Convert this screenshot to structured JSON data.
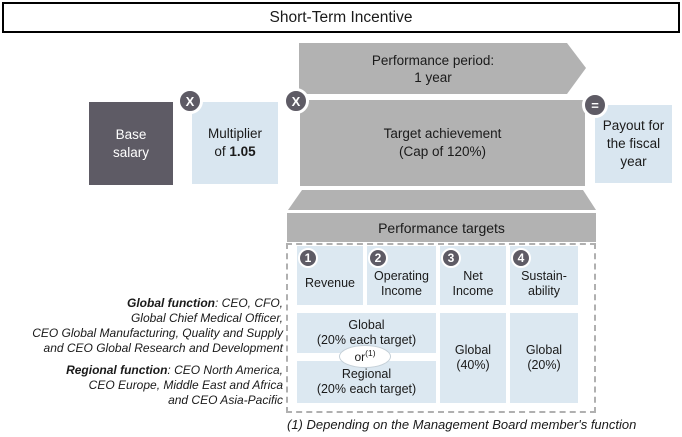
{
  "title": "Short-Term Incentive",
  "period_arrow": {
    "label": "Performance period:\n1 year"
  },
  "formula": {
    "base_salary": "Base\nsalary",
    "operator_1": "X",
    "multiplier_line1": "Multiplier",
    "multiplier_line2_prefix": "of ",
    "multiplier_value": "1.05",
    "operator_2": "X",
    "target_achievement": "Target achievement\n(Cap of 120%)",
    "operator_result": "=",
    "payout": "Payout for\nthe fiscal\nyear"
  },
  "performance_targets": {
    "header": "Performance targets",
    "columns": [
      {
        "number": "1",
        "label": "Revenue"
      },
      {
        "number": "2",
        "label": "Operating\nIncome"
      },
      {
        "number": "3",
        "label": "Net\nIncome"
      },
      {
        "number": "4",
        "label": "Sustain-\nability"
      }
    ],
    "weights": {
      "global_option": "Global\n(20% each target)",
      "or_word": "or",
      "or_footnote_marker": "(1)",
      "regional_option": "Regional\n(20% each target)",
      "net_income": "Global\n(40%)",
      "sustainability": "Global\n(20%)"
    }
  },
  "legend": {
    "global_label": "Global function",
    "global_text": ": CEO, CFO,\nGlobal Chief Medical Officer,\nCEO Global Manufacturing, Quality and Supply\nand CEO Global Research and Development",
    "regional_label": "Regional function",
    "regional_text": ": CEO North America,\nCEO Europe, Middle East and Africa\nand CEO Asia-Pacific"
  },
  "footnote": "(1) Depending on the Management Board member's function",
  "colors": {
    "dark_gray": "#5e5b65",
    "mid_gray": "#b2b2b2",
    "light_blue": "#d9e6f0",
    "cell_blue": "#dce8f1"
  }
}
